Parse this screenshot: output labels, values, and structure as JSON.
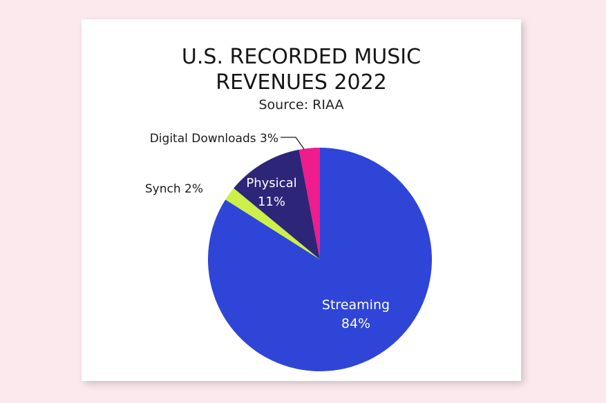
{
  "chart_data": {
    "type": "pie",
    "title_lines": [
      "U.S. RECORDED MUSIC",
      "REVENUES 2022"
    ],
    "subtitle": "Source: RIAA",
    "slices": [
      {
        "name": "Streaming",
        "pct_label": "84%",
        "value": 84,
        "color": "#2e45d7",
        "label_inside": true,
        "text_color": "#ffffff"
      },
      {
        "name": "Synch",
        "pct_label": "2%",
        "value": 2,
        "color": "#ccf047",
        "label_inside": false,
        "text_color": "#1a1a1a"
      },
      {
        "name": "Physical",
        "pct_label": "11%",
        "value": 11,
        "color": "#2d2578",
        "label_inside": true,
        "text_color": "#ffffff"
      },
      {
        "name": "Digital Downloads",
        "pct_label": "3%",
        "value": 3,
        "color": "#ee1c8c",
        "label_inside": false,
        "text_color": "#1a1a1a"
      }
    ],
    "start_angle": "12 o'clock",
    "direction": "clockwise"
  }
}
